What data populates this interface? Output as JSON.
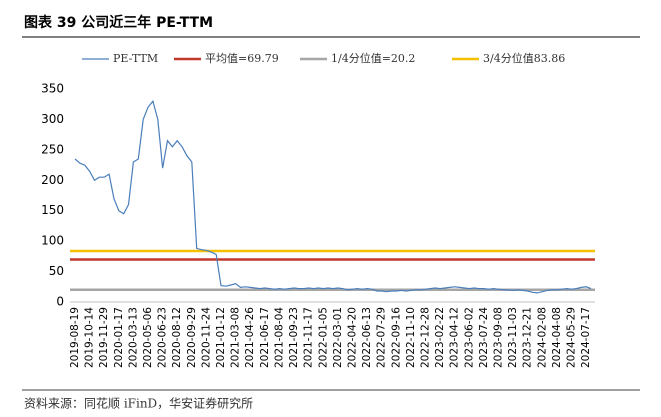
{
  "chart_data": {
    "type": "line",
    "title": "图表 39 公司近三年 PE-TTM",
    "source": "资料来源：同花顺 iFinD，华安证券研究所",
    "categories": [
      "2019-08-19",
      null,
      null,
      "2019-10-14",
      null,
      null,
      "2019-11-29",
      null,
      null,
      "2020-01-17",
      null,
      null,
      "2020-03-13",
      null,
      null,
      "2020-05-06",
      null,
      null,
      "2020-06-23",
      null,
      null,
      "2020-08-12",
      null,
      null,
      "2020-09-29",
      null,
      null,
      "2020-11-24",
      null,
      null,
      "2021-01-12",
      null,
      null,
      "2021-03-08",
      null,
      null,
      "2021-04-26",
      null,
      null,
      "2021-06-17",
      null,
      null,
      "2021-08-04",
      null,
      null,
      "2021-09-23",
      null,
      null,
      "2021-11-17",
      null,
      null,
      "2022-01-05",
      null,
      null,
      "2022-03-01",
      null,
      null,
      "2022-04-20",
      null,
      null,
      "2022-06-13",
      null,
      null,
      "2022-07-29",
      null,
      null,
      "2022-09-16",
      null,
      null,
      "2022-11-10",
      null,
      null,
      "2022-12-28",
      null,
      null,
      "2023-02-22",
      null,
      null,
      "2023-04-12",
      null,
      null,
      "2023-06-02",
      null,
      null,
      "2023-07-24",
      null,
      null,
      "2023-09-08",
      null,
      null,
      "2023-11-03",
      null,
      null,
      "2023-12-21",
      null,
      null,
      "2024-02-08",
      null,
      null,
      "2024-04-08",
      null,
      null,
      "2024-05-29",
      null,
      null,
      "2024-07-17",
      null
    ],
    "series": [
      {
        "name": "PE-TTM",
        "color": "#4a7ebb",
        "values": [
          235,
          228,
          225,
          215,
          200,
          205,
          205,
          210,
          170,
          150,
          145,
          160,
          230,
          235,
          300,
          320,
          330,
          300,
          220,
          265,
          255,
          265,
          255,
          240,
          230,
          88,
          86,
          85,
          82,
          78,
          27,
          26,
          28,
          30,
          24,
          25,
          24,
          23,
          22,
          23,
          22,
          21,
          22,
          21,
          22,
          23,
          22,
          22,
          23,
          22,
          23,
          22,
          23,
          22,
          23,
          22,
          20,
          21,
          22,
          21,
          22,
          21,
          18,
          18,
          17,
          18,
          18,
          19,
          18,
          19,
          20,
          20,
          21,
          22,
          23,
          22,
          23,
          24,
          25,
          24,
          23,
          22,
          23,
          22,
          22,
          21,
          22,
          21,
          20,
          20,
          19,
          20,
          19,
          18,
          16,
          15,
          17,
          19,
          20,
          20,
          21,
          22,
          21,
          22,
          24,
          25,
          22
        ]
      }
    ],
    "reference_lines": [
      {
        "name": "平均值=69.79",
        "color": "#c0392b",
        "value": 69.79
      },
      {
        "name": "1/4分位值=20.2",
        "color": "#a6a6a6",
        "value": 20.2
      },
      {
        "name": "3/4分位值83.86",
        "color": "#f5c000",
        "value": 83.86
      }
    ],
    "ylim": [
      0,
      350
    ],
    "yticks": [
      0,
      50,
      100,
      150,
      200,
      250,
      300,
      350
    ],
    "grid": false
  }
}
